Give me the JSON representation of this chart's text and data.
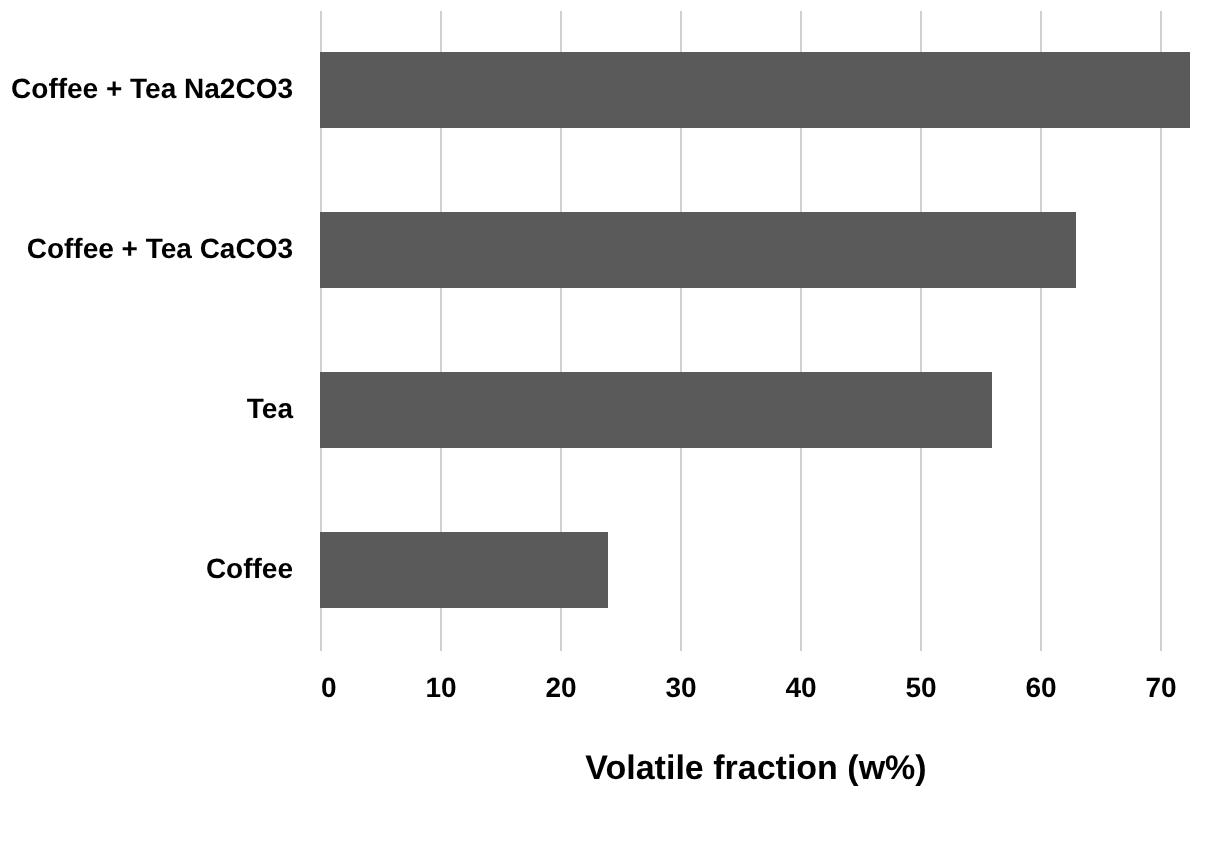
{
  "chart_data": {
    "type": "bar",
    "orientation": "horizontal",
    "xlabel": "Volatile fraction (w%)",
    "categories": [
      "Coffee + Tea Na2CO3",
      "Coffee + Tea CaCO3",
      "Tea",
      "Coffee"
    ],
    "values": [
      72.5,
      63,
      56,
      24
    ],
    "color": "#5a5a5a",
    "xlim": [
      0,
      72.5
    ],
    "xticks": [
      0,
      10,
      20,
      30,
      40,
      50,
      60,
      70
    ],
    "grid": "x"
  }
}
